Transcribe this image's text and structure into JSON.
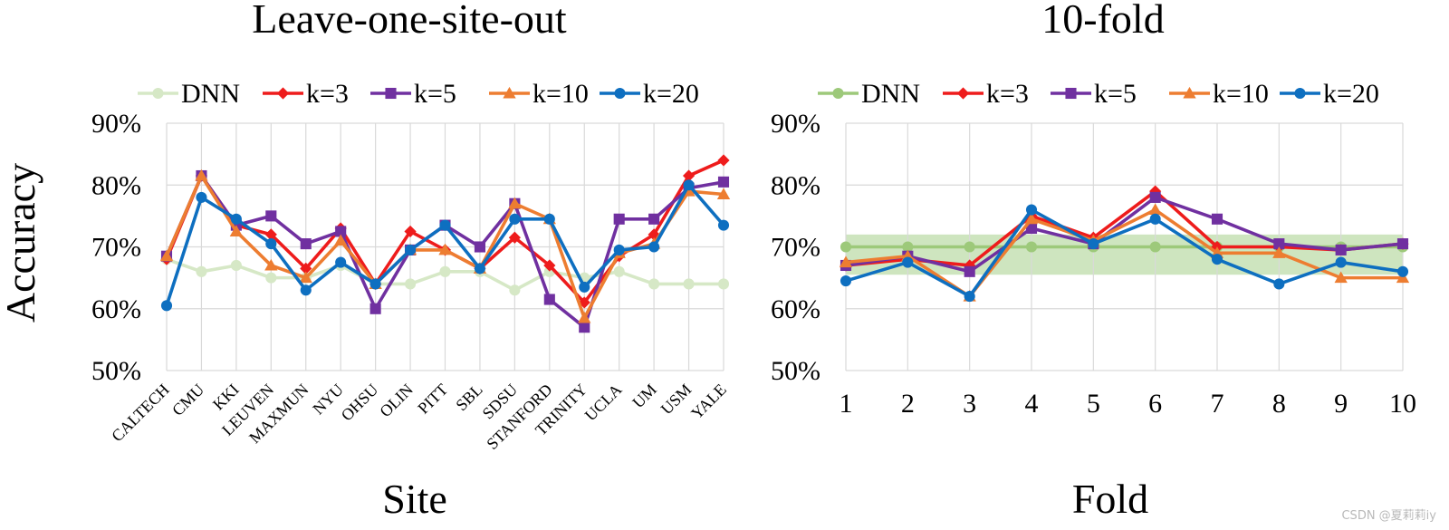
{
  "watermark": "CSDN @夏莉莉iy",
  "ylabel": "Accuracy",
  "chart_data": [
    {
      "type": "line",
      "title": "Leave-one-site-out",
      "xlabel": "Site",
      "ylabel": "Accuracy",
      "ylim": [
        50,
        90
      ],
      "yticks": [
        "50%",
        "60%",
        "70%",
        "80%",
        "90%"
      ],
      "categories": [
        "CALTECH",
        "CMU",
        "KKI",
        "LEUVEN",
        "MAXMUN",
        "NYU",
        "OHSU",
        "OLIN",
        "PITT",
        "SBL",
        "SDSU",
        "STANFORD",
        "TRINITY",
        "UCLA",
        "UM",
        "USM",
        "YALE"
      ],
      "legend": "top",
      "series": [
        {
          "name": "DNN",
          "color": "#d6e8c6",
          "marker": "circle",
          "values": [
            68,
            66,
            67,
            65,
            65,
            67,
            64,
            64,
            66,
            66,
            63,
            66,
            65,
            66,
            64,
            64,
            64
          ]
        },
        {
          "name": "k=3",
          "color": "#ee1c1c",
          "marker": "diamond",
          "values": [
            68,
            81.5,
            73.5,
            72,
            66.5,
            73,
            64,
            72.5,
            69.5,
            66.5,
            71.5,
            67,
            61,
            68.5,
            72,
            81.5,
            84
          ]
        },
        {
          "name": "k=5",
          "color": "#7030a0",
          "marker": "square",
          "values": [
            68.5,
            81.5,
            73.5,
            75,
            70.5,
            72.5,
            60,
            69.5,
            73.5,
            70,
            77,
            61.5,
            57,
            74.5,
            74.5,
            79.5,
            80.5
          ]
        },
        {
          "name": "k=10",
          "color": "#ed7d31",
          "marker": "triangle",
          "values": [
            68.5,
            81.5,
            72.5,
            67,
            65,
            71,
            64,
            69.5,
            69.5,
            66.5,
            77,
            74.5,
            58.5,
            69,
            70.5,
            79,
            78.5
          ]
        },
        {
          "name": "k=20",
          "color": "#0e6fc0",
          "marker": "circle",
          "values": [
            60.5,
            78,
            74.5,
            70.5,
            63,
            67.5,
            64,
            69.5,
            73.5,
            66.5,
            74.5,
            74.5,
            63.5,
            69.5,
            70,
            80,
            73.5
          ]
        }
      ]
    },
    {
      "type": "line",
      "title": "10-fold",
      "xlabel": "Fold",
      "ylabel": "Accuracy",
      "ylim": [
        50,
        90
      ],
      "yticks": [
        "50%",
        "60%",
        "70%",
        "80%",
        "90%"
      ],
      "categories": [
        "1",
        "2",
        "3",
        "4",
        "5",
        "6",
        "7",
        "8",
        "9",
        "10"
      ],
      "legend": "top",
      "band": {
        "low": 65.5,
        "high": 72,
        "color": "#c5e0b4"
      },
      "series": [
        {
          "name": "DNN",
          "color": "#9dc97a",
          "marker": "circle",
          "values": [
            70,
            70,
            70,
            70,
            70,
            70,
            70,
            70,
            70,
            70
          ]
        },
        {
          "name": "k=3",
          "color": "#ee1c1c",
          "marker": "diamond",
          "values": [
            67,
            68,
            67,
            75,
            71.5,
            79,
            70,
            70,
            69.5,
            70.5
          ]
        },
        {
          "name": "k=5",
          "color": "#7030a0",
          "marker": "square",
          "values": [
            67,
            68.5,
            66,
            73,
            70.5,
            78,
            74.5,
            70.5,
            69.5,
            70.5
          ]
        },
        {
          "name": "k=10",
          "color": "#ed7d31",
          "marker": "triangle",
          "values": [
            67.5,
            68.5,
            62,
            74.5,
            71,
            76,
            69,
            69,
            65,
            65
          ]
        },
        {
          "name": "k=20",
          "color": "#0e6fc0",
          "marker": "circle",
          "values": [
            64.5,
            67.5,
            62,
            76,
            70.5,
            74.5,
            68,
            64,
            67.5,
            66
          ]
        }
      ]
    }
  ]
}
